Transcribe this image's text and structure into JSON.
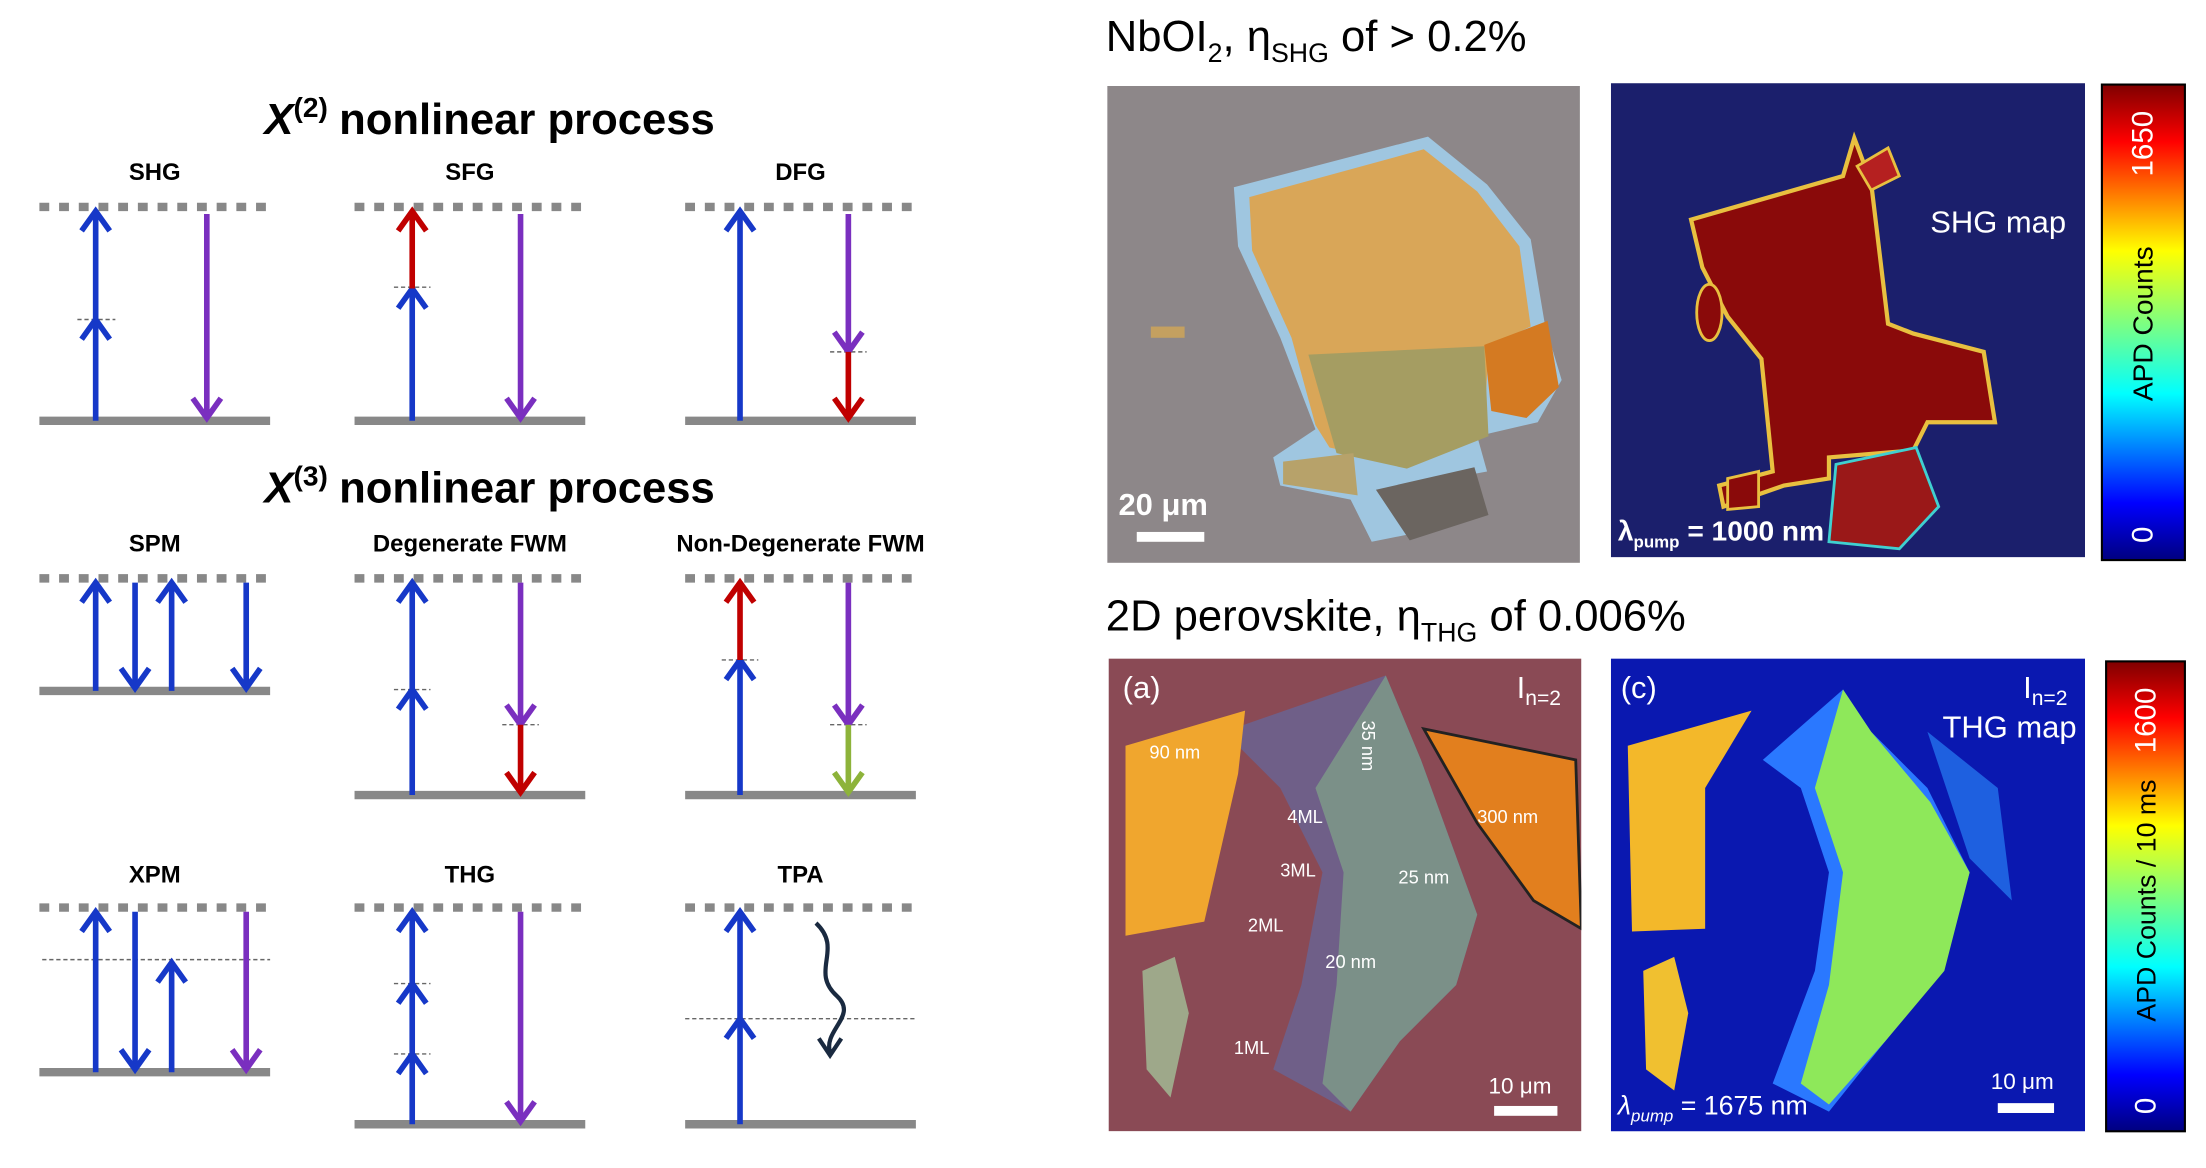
{
  "left": {
    "chi2_title": {
      "symbol": "X",
      "order": "(2)",
      "text": "nonlinear process"
    },
    "chi3_title": {
      "symbol": "X",
      "order": "(3)",
      "text": "nonlinear process"
    },
    "processes": [
      "SHG",
      "SFG",
      "DFG",
      "SPM",
      "Degenerate FWM",
      "Non-Degenerate FWM",
      "XPM",
      "THG",
      "TPA"
    ]
  },
  "top_panel": {
    "title": {
      "material": "NbOI",
      "material_subscript": "2",
      "eta": ", η",
      "eta_subscript": "SHG",
      "rest": " of > 0.2%"
    },
    "scale_bar": "20 μm",
    "map_label": "SHG map",
    "pump": {
      "symbol": "λ",
      "subscript": "pump",
      "value": " = 1000 nm"
    },
    "colorbar": {
      "max": "1650",
      "min": "0",
      "label": "APD Counts"
    }
  },
  "bottom_panel": {
    "title": {
      "material": "2D perovskite, η",
      "eta_subscript": "THG",
      "rest": " of 0.006%"
    },
    "optical": {
      "tag": "(a)",
      "phase": "I",
      "phase_subscript": "n=2",
      "labels": [
        "90 nm",
        "35 nm",
        "4ML",
        "3ML",
        "2ML",
        "1ML",
        "20 nm",
        "25 nm",
        "300 nm"
      ],
      "scale_bar": "10 μm"
    },
    "map": {
      "tag": "(c)",
      "phase": "I",
      "phase_subscript": "n=2",
      "map_label": "THG map",
      "pump": {
        "symbol": "λ",
        "subscript": "pump",
        "value": " = 1675 nm"
      },
      "scale_bar": "10 μm"
    },
    "colorbar": {
      "max": "1600",
      "min": "0",
      "label": "APD Counts / 10 ms"
    }
  }
}
